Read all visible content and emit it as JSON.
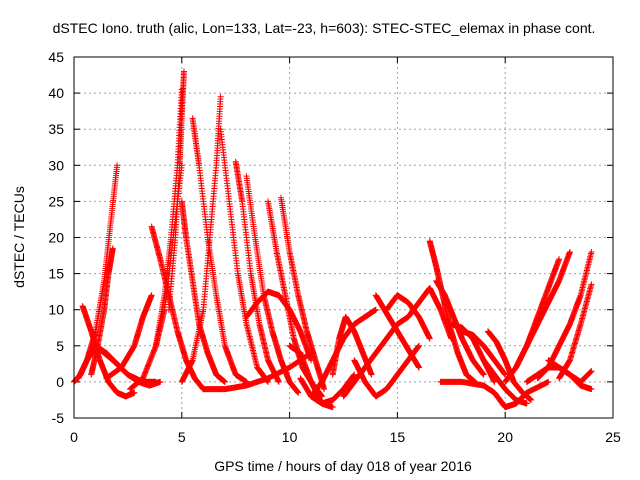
{
  "chart_data": {
    "type": "scatter",
    "title": "dSTEC Iono. truth (alic, Lon=133, Lat=-23, h=603): STEC-STEC_elemax in phase cont.",
    "xlabel": "GPS time / hours of day 018 of year 2016",
    "ylabel": "dSTEC  / TECUs",
    "xlim": [
      0,
      25
    ],
    "ylim": [
      -5,
      45
    ],
    "xticks": [
      0,
      5,
      10,
      15,
      20,
      25
    ],
    "yticks": [
      -5,
      0,
      5,
      10,
      15,
      20,
      25,
      30,
      35,
      40,
      45
    ],
    "grid": true,
    "marker": "plus",
    "color": "#ff0000",
    "series": [
      {
        "x": [
          0.0,
          0.3,
          0.6,
          1.0,
          1.5,
          2.0,
          2.5,
          3.0,
          3.5,
          4.0
        ],
        "y": [
          0.0,
          1.0,
          3.0,
          5.0,
          4.0,
          2.5,
          1.0,
          0.0,
          -0.5,
          0.0
        ]
      },
      {
        "x": [
          0.2,
          0.6,
          1.0,
          1.4,
          1.7,
          2.0
        ],
        "y": [
          0.5,
          3.0,
          7.0,
          14.0,
          22.0,
          30.0
        ]
      },
      {
        "x": [
          0.4,
          0.8,
          1.2,
          1.6,
          2.0,
          2.4,
          2.8
        ],
        "y": [
          10.5,
          7.0,
          3.0,
          0.0,
          -1.5,
          -2.0,
          -1.5
        ]
      },
      {
        "x": [
          0.8,
          1.1,
          1.4,
          1.6,
          1.8
        ],
        "y": [
          1.0,
          5.0,
          10.0,
          15.0,
          18.5
        ]
      },
      {
        "x": [
          1.2,
          1.8,
          2.5,
          3.2,
          3.8
        ],
        "y": [
          4.5,
          3.0,
          1.0,
          0.0,
          0.0
        ]
      },
      {
        "x": [
          1.5,
          2.2,
          2.8,
          3.2,
          3.6
        ],
        "y": [
          0.5,
          2.0,
          5.0,
          9.0,
          12.0
        ]
      },
      {
        "x": [
          2.6,
          3.2,
          3.8,
          4.2,
          4.6,
          5.0
        ],
        "y": [
          -1.0,
          0.5,
          5.0,
          10.0,
          20.0,
          30.0
        ]
      },
      {
        "x": [
          3.6,
          4.0,
          4.4,
          4.8,
          5.2,
          5.6,
          6.0
        ],
        "y": [
          21.5,
          17.0,
          12.0,
          7.0,
          3.0,
          0.5,
          -1.0
        ]
      },
      {
        "x": [
          3.8,
          4.2,
          4.5,
          4.8,
          5.0
        ],
        "y": [
          5.0,
          12.0,
          20.0,
          30.0,
          40.5
        ]
      },
      {
        "x": [
          4.4,
          4.7,
          4.9,
          5.0,
          5.1
        ],
        "y": [
          10.0,
          20.0,
          30.0,
          37.0,
          43.0
        ]
      },
      {
        "x": [
          5.0,
          5.2,
          5.5,
          5.8,
          6.2,
          6.6,
          7.0
        ],
        "y": [
          25.0,
          20.0,
          14.0,
          8.0,
          4.0,
          1.0,
          0.0
        ]
      },
      {
        "x": [
          5.5,
          5.8,
          6.2,
          6.6,
          7.0,
          7.5,
          8.0
        ],
        "y": [
          36.5,
          30.0,
          20.0,
          12.0,
          5.0,
          1.0,
          0.0
        ]
      },
      {
        "x": [
          5.0,
          5.5,
          6.0,
          6.3,
          6.6,
          6.8
        ],
        "y": [
          0.0,
          3.0,
          10.0,
          20.0,
          30.0,
          39.5
        ]
      },
      {
        "x": [
          6.8,
          7.2,
          7.6,
          8.0,
          8.5,
          9.0
        ],
        "y": [
          35.0,
          25.0,
          15.0,
          8.0,
          2.0,
          0.0
        ]
      },
      {
        "x": [
          7.5,
          7.8,
          8.2,
          8.6,
          9.0,
          9.5
        ],
        "y": [
          30.5,
          25.0,
          15.0,
          8.0,
          3.0,
          0.0
        ]
      },
      {
        "x": [
          8.0,
          8.4,
          8.8,
          9.2,
          9.6,
          10.0,
          10.4
        ],
        "y": [
          28.5,
          20.0,
          12.0,
          7.0,
          3.0,
          0.0,
          -1.5
        ]
      },
      {
        "x": [
          9.0,
          9.4,
          9.8,
          10.2,
          10.6,
          11.0,
          11.5
        ],
        "y": [
          25.0,
          18.0,
          12.0,
          6.0,
          2.0,
          0.0,
          -2.0
        ]
      },
      {
        "x": [
          9.6,
          10.0,
          10.4,
          10.8,
          11.2,
          11.6
        ],
        "y": [
          25.5,
          18.0,
          12.0,
          7.0,
          3.0,
          -1.0
        ]
      },
      {
        "x": [
          6.0,
          7.0,
          8.0,
          9.0,
          10.0,
          11.0
        ],
        "y": [
          -1.0,
          -1.0,
          -0.5,
          0.5,
          2.0,
          4.0
        ]
      },
      {
        "x": [
          8.0,
          8.5,
          9.0,
          9.5,
          10.0,
          10.5,
          11.0
        ],
        "y": [
          9.0,
          11.0,
          12.5,
          12.0,
          10.0,
          7.0,
          3.0
        ]
      },
      {
        "x": [
          10.0,
          10.5,
          11.0,
          11.5,
          12.0
        ],
        "y": [
          5.0,
          4.0,
          0.0,
          -3.0,
          -3.5
        ]
      },
      {
        "x": [
          10.5,
          11.0,
          11.5,
          12.0,
          12.5,
          13.0
        ],
        "y": [
          0.5,
          -2.0,
          -3.0,
          -2.5,
          -1.0,
          1.0
        ]
      },
      {
        "x": [
          11.0,
          11.5,
          12.0,
          12.5,
          13.0,
          13.5,
          14.0
        ],
        "y": [
          -2.0,
          0.0,
          3.0,
          6.0,
          8.0,
          9.0,
          10.0
        ]
      },
      {
        "x": [
          12.0,
          12.3,
          12.6,
          13.0,
          13.4,
          13.8
        ],
        "y": [
          1.0,
          6.0,
          9.0,
          7.0,
          4.0,
          1.0
        ]
      },
      {
        "x": [
          12.5,
          13.0,
          13.5,
          14.0,
          14.5,
          15.0
        ],
        "y": [
          -2.0,
          0.0,
          2.0,
          4.0,
          6.0,
          8.0
        ]
      },
      {
        "x": [
          13.0,
          13.5,
          14.0,
          14.5,
          15.0,
          15.5,
          16.0
        ],
        "y": [
          3.0,
          0.0,
          -2.0,
          -1.0,
          1.0,
          3.0,
          5.0
        ]
      },
      {
        "x": [
          14.0,
          14.4,
          14.8,
          15.2,
          15.6,
          16.0
        ],
        "y": [
          12.0,
          10.0,
          8.0,
          6.0,
          4.0,
          2.0
        ]
      },
      {
        "x": [
          14.5,
          15.0,
          15.5,
          16.0,
          16.5
        ],
        "y": [
          10.0,
          12.0,
          11.0,
          9.0,
          6.0
        ]
      },
      {
        "x": [
          15.0,
          15.5,
          16.0,
          16.5,
          17.0,
          17.5
        ],
        "y": [
          8.0,
          9.0,
          11.0,
          13.0,
          10.0,
          6.0
        ]
      },
      {
        "x": [
          16.5,
          16.8,
          17.1,
          17.4,
          17.8,
          18.2,
          18.6
        ],
        "y": [
          19.5,
          16.0,
          12.0,
          8.0,
          4.0,
          1.0,
          0.0
        ]
      },
      {
        "x": [
          16.8,
          17.2,
          17.6,
          18.0,
          18.5,
          19.0
        ],
        "y": [
          14.0,
          12.0,
          9.0,
          6.0,
          3.0,
          1.0
        ]
      },
      {
        "x": [
          17.5,
          18.0,
          18.5,
          19.0,
          19.5
        ],
        "y": [
          8.0,
          7.5,
          6.0,
          3.0,
          0.0
        ]
      },
      {
        "x": [
          18.0,
          18.5,
          19.0,
          19.5,
          20.0
        ],
        "y": [
          7.0,
          6.5,
          5.0,
          3.0,
          1.0
        ]
      },
      {
        "x": [
          19.0,
          19.5,
          20.0,
          20.5,
          21.0
        ],
        "y": [
          3.0,
          1.0,
          -1.0,
          -2.5,
          -3.0
        ]
      },
      {
        "x": [
          19.2,
          19.6,
          20.0,
          20.4,
          20.8,
          21.2
        ],
        "y": [
          7.0,
          5.5,
          3.0,
          0.0,
          -1.5,
          -2.5
        ]
      },
      {
        "x": [
          17.0,
          18.0,
          19.0,
          19.5,
          20.0,
          20.5,
          21.0,
          22.0
        ],
        "y": [
          0.0,
          0.0,
          -0.5,
          -1.5,
          -3.5,
          -3.0,
          -1.5,
          0.0
        ]
      },
      {
        "x": [
          20.0,
          20.5,
          21.0,
          21.5,
          22.0,
          22.5,
          23.0
        ],
        "y": [
          0.0,
          2.0,
          5.0,
          8.0,
          11.0,
          14.0,
          18.0
        ]
      },
      {
        "x": [
          20.5,
          21.0,
          21.5,
          22.0,
          22.5
        ],
        "y": [
          2.0,
          5.0,
          9.0,
          13.0,
          17.0
        ]
      },
      {
        "x": [
          21.0,
          21.5,
          22.0,
          22.5,
          23.0,
          23.5,
          24.0
        ],
        "y": [
          0.0,
          1.0,
          2.0,
          2.0,
          1.0,
          0.0,
          1.5
        ]
      },
      {
        "x": [
          22.0,
          22.5,
          23.0,
          23.5,
          24.0
        ],
        "y": [
          3.0,
          2.0,
          1.0,
          -0.5,
          -1.0
        ]
      },
      {
        "x": [
          21.5,
          22.0,
          22.5,
          23.0,
          23.5,
          24.0
        ],
        "y": [
          0.5,
          2.0,
          5.0,
          8.0,
          12.0,
          18.0
        ]
      },
      {
        "x": [
          22.5,
          23.0,
          23.5,
          24.0
        ],
        "y": [
          0.5,
          3.0,
          8.0,
          13.5
        ]
      }
    ]
  }
}
